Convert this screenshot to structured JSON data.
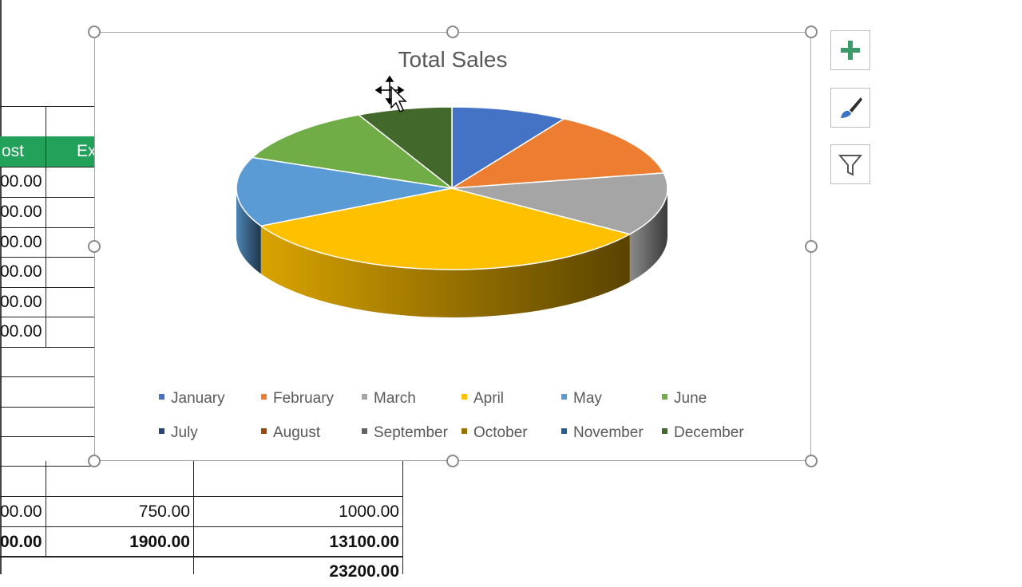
{
  "sheet": {
    "headers": [
      "ost",
      "Ex"
    ],
    "cost_values": [
      "00.00",
      "00.00",
      "00.00",
      "00.00",
      "00.00",
      "00.00"
    ],
    "row_a": [
      "00.00",
      "750.00",
      "1000.00"
    ],
    "row_b": [
      "00.00",
      "1900.00",
      "13100.00"
    ],
    "grand_total": "23200.00"
  },
  "chart": {
    "title": "Total Sales",
    "legend": [
      {
        "label": "January",
        "color": "#4472c4"
      },
      {
        "label": "February",
        "color": "#ed7d31"
      },
      {
        "label": "March",
        "color": "#a5a5a5"
      },
      {
        "label": "April",
        "color": "#ffc000"
      },
      {
        "label": "May",
        "color": "#5b9bd5"
      },
      {
        "label": "June",
        "color": "#70ad47"
      },
      {
        "label": "July",
        "color": "#264478"
      },
      {
        "label": "August",
        "color": "#9e480e"
      },
      {
        "label": "September",
        "color": "#636363"
      },
      {
        "label": "October",
        "color": "#997300"
      },
      {
        "label": "November",
        "color": "#255e91"
      },
      {
        "label": "December",
        "color": "#43682b"
      }
    ]
  },
  "chart_data": {
    "type": "pie",
    "title": "Total Sales",
    "categories": [
      "January",
      "February",
      "March",
      "April",
      "May",
      "June",
      "July",
      "August",
      "September",
      "October",
      "November",
      "December"
    ],
    "values": [
      9.3,
      14.2,
      13.4,
      35.0,
      14.8,
      12.5,
      0,
      0,
      0,
      0,
      0,
      7.6
    ],
    "legend_position": "bottom",
    "style": "3d"
  },
  "side_buttons": [
    {
      "name": "chart-elements-button",
      "icon": "plus-icon"
    },
    {
      "name": "chart-styles-button",
      "icon": "paintbrush-icon"
    },
    {
      "name": "chart-filters-button",
      "icon": "funnel-icon"
    }
  ]
}
